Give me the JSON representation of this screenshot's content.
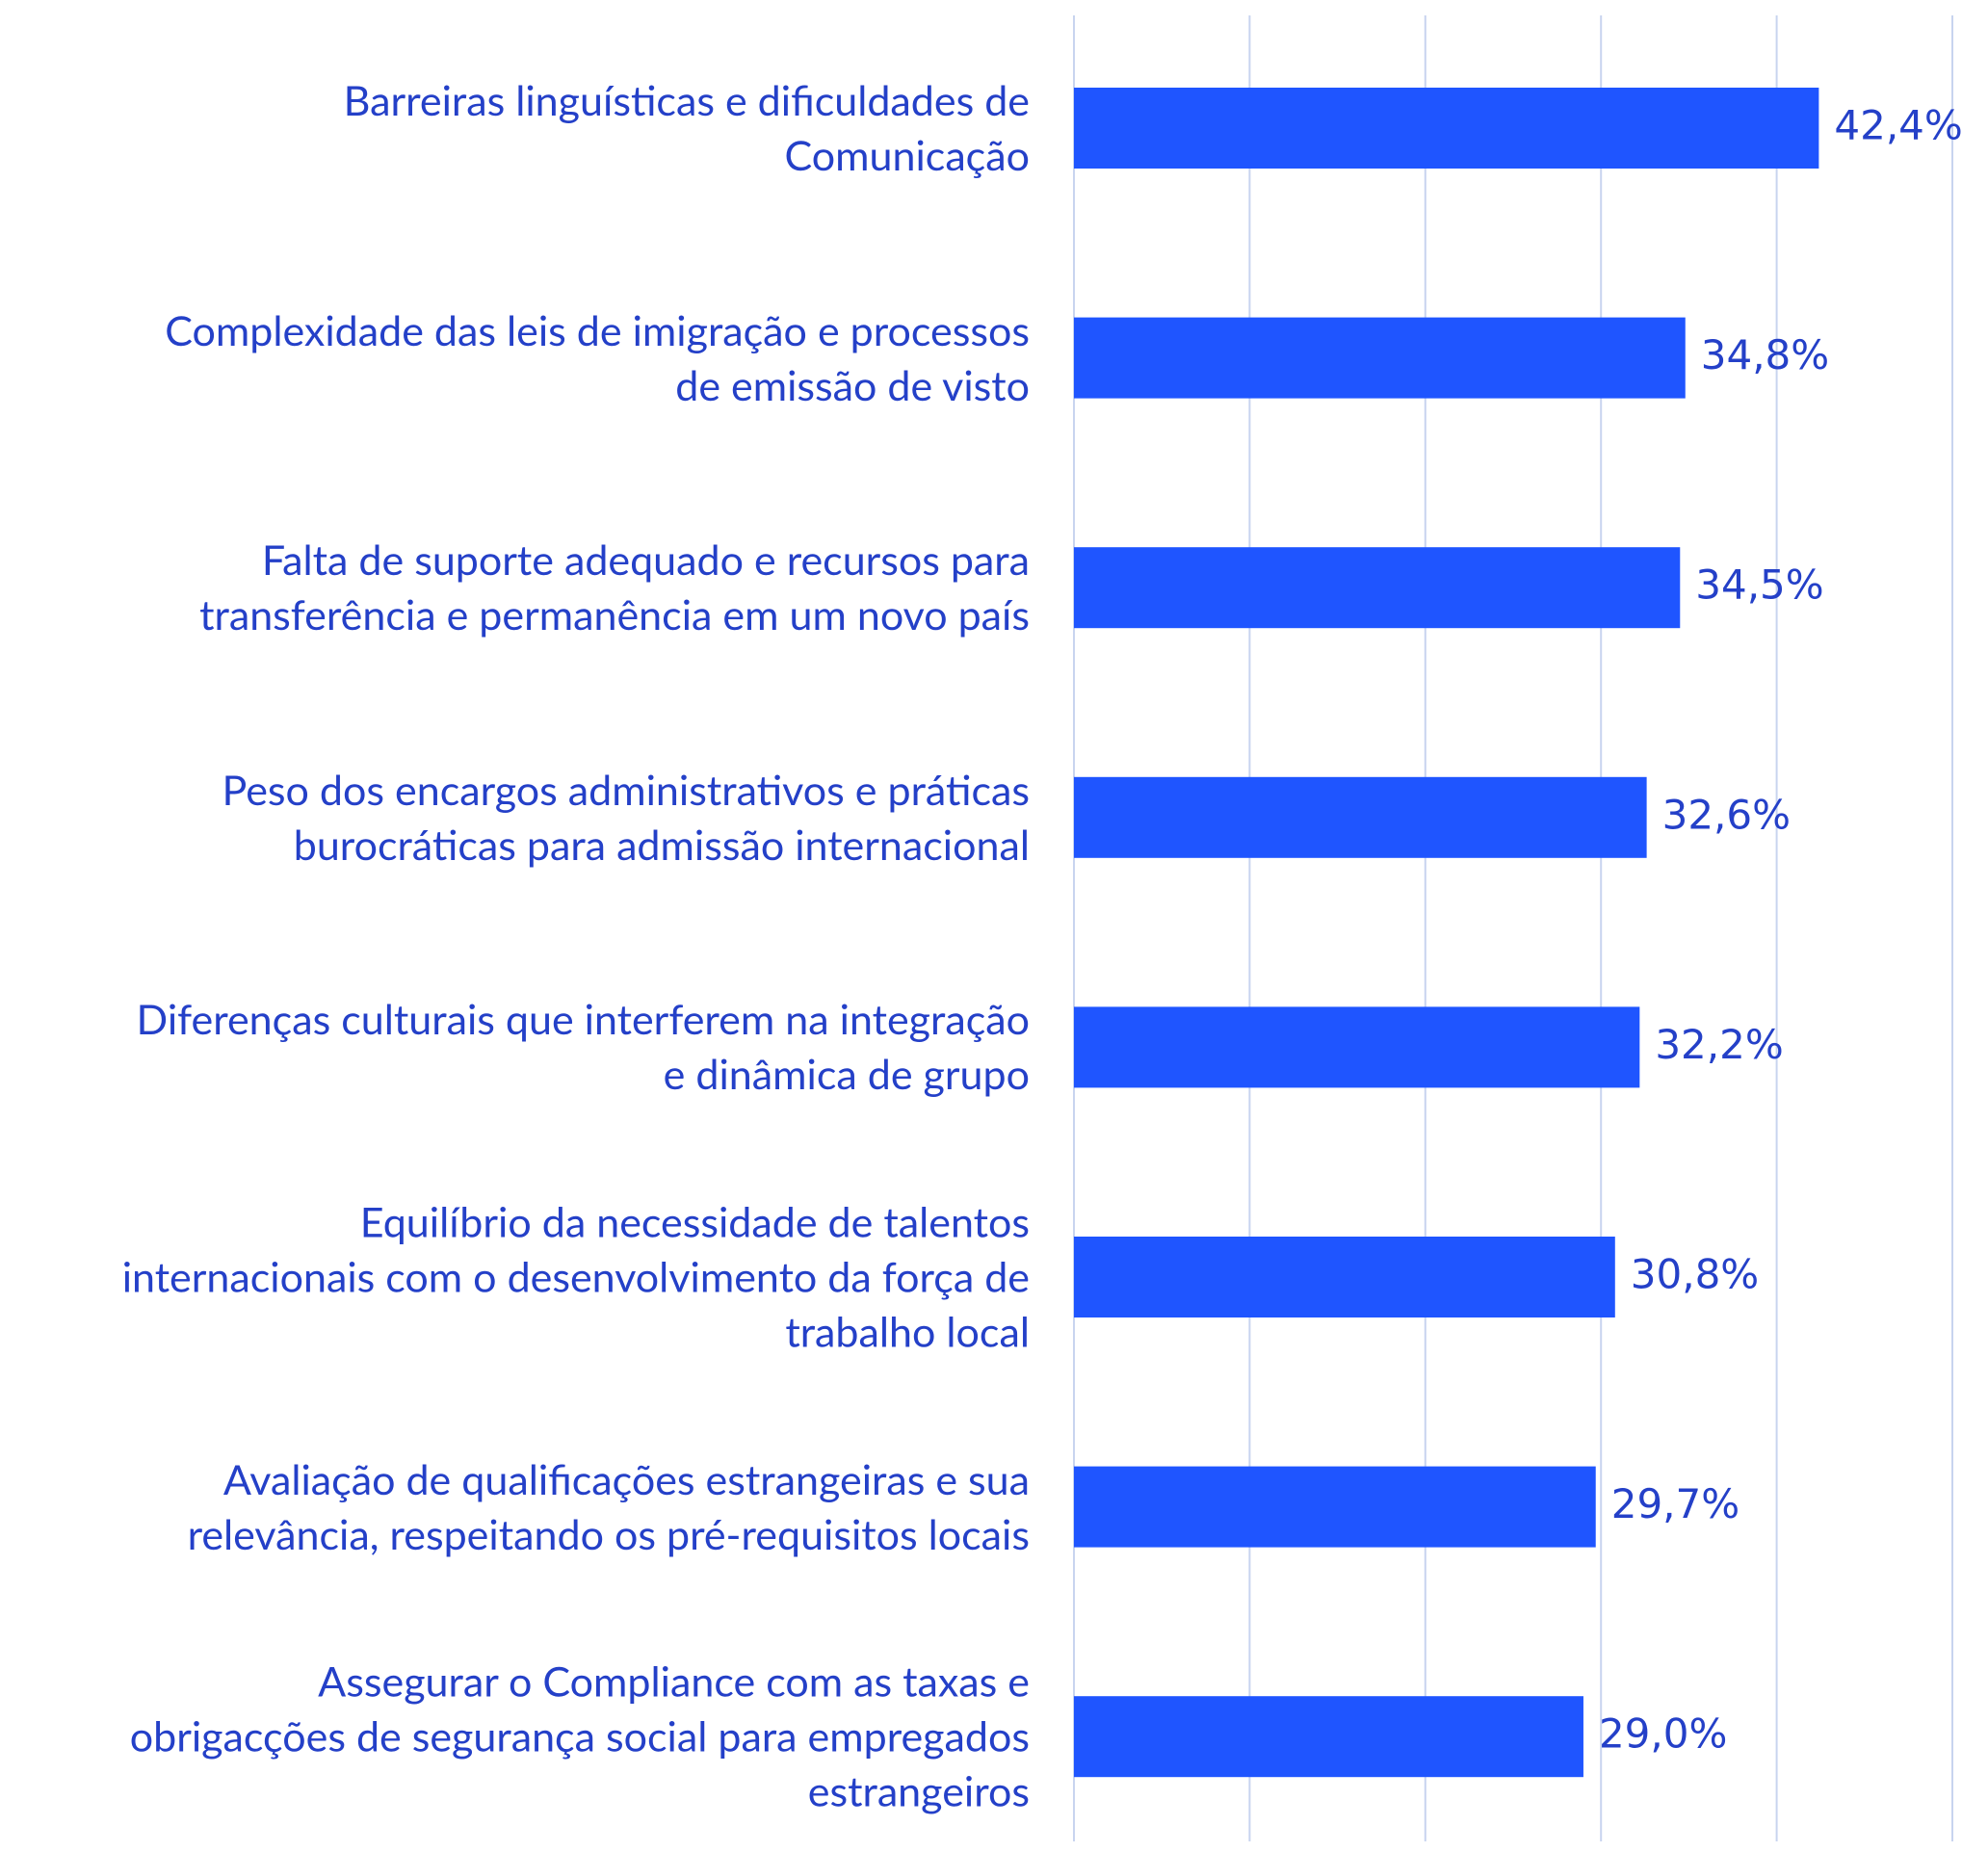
{
  "chart_data": {
    "type": "bar",
    "orientation": "horizontal",
    "categories": [
      "Barreiras linguísticas e dificuldades de\nComunicação",
      "Complexidade das leis de imigração e processos\nde emissão de visto",
      "Falta de suporte adequado e recursos para\ntransferência e permanência em um novo país",
      "Peso dos encargos administrativos e práticas\nburocráticas para admissão internacional",
      "Diferenças culturais que interferem na integração\ne dinâmica de grupo",
      "Equilíbrio da necessidade de talentos\ninternacionais com o desenvolvimento da força de\ntrabalho local",
      "Avaliação de qualificações estrangeiras e sua\nrelevância, respeitando os pré-requisitos locais",
      "Assegurar o Compliance com as taxas e\nobrigacções de segurança social para empregados\nestrangeiros"
    ],
    "values": [
      42.4,
      34.8,
      34.5,
      32.6,
      32.2,
      30.8,
      29.7,
      29.0
    ],
    "value_labels": [
      "42,4%",
      "34,8%",
      "34,5%",
      "32,6%",
      "32,2%",
      "30,8%",
      "29,7%",
      "29,0%"
    ],
    "color": "#1f55ff",
    "xlim": [
      0,
      50
    ],
    "xticks": [
      0,
      10,
      20,
      30,
      40,
      50
    ],
    "grid": true
  }
}
